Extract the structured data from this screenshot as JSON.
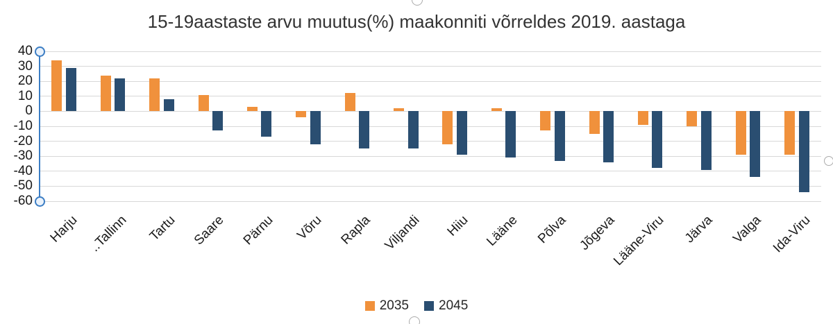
{
  "chart_data": {
    "type": "bar",
    "title": "15-19aastaste arvu muutus(%) maakonniti võrreldes 2019. aastaga",
    "categories": [
      "Harju",
      "..Tallinn",
      "Tartu",
      "Saare",
      "Pärnu",
      "Võru",
      "Rapla",
      "Viljandi",
      "Hiiu",
      "Lääne",
      "Põlva",
      "Jõgeva",
      "Lääne-Viru",
      "Järva",
      "Valga",
      "Ida-Viru"
    ],
    "series": [
      {
        "name": "2035",
        "color": "#f0913c",
        "values": [
          34,
          24,
          22,
          11,
          3,
          -4,
          12,
          2,
          -22,
          2,
          -13,
          -15,
          -9,
          -10,
          -29,
          -29
        ]
      },
      {
        "name": "2045",
        "color": "#2a4e71",
        "values": [
          29,
          22,
          8,
          -13,
          -17,
          -22,
          -25,
          -25,
          -29,
          -31,
          -33,
          -34,
          -38,
          -39,
          -44,
          -54
        ]
      }
    ],
    "xlabel": "",
    "ylabel": "",
    "ylim": [
      -60,
      40
    ],
    "yticks": [
      40,
      30,
      20,
      10,
      0,
      -10,
      -20,
      -30,
      -40,
      -50,
      -60
    ],
    "grid": "horizontal",
    "legend_position": "bottom",
    "x_tick_rotation": -45
  },
  "selection_ui": {
    "axis_selected_color": "#3b7dc4",
    "handle_color": "#ababab"
  }
}
